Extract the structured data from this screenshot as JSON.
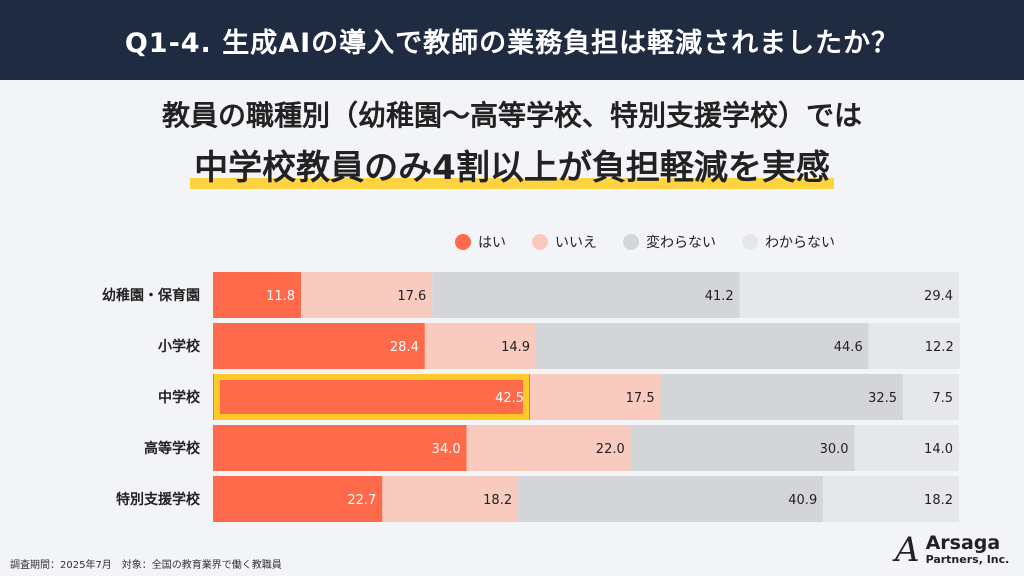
{
  "header": {
    "title": "Q1-4. 生成AIの導入で教師の業務負担は軽減されましたか？"
  },
  "subtitle": {
    "line1": "教員の職種別（幼稚園〜高等学校、特別支援学校）では",
    "line2": "中学校教員のみ4割以上が負担軽減を実感"
  },
  "chart_data": {
    "type": "bar",
    "orientation": "horizontal",
    "stacked": true,
    "xlim": [
      0,
      100
    ],
    "legend_position": "top-right",
    "grid": false,
    "categories": [
      "幼稚園・保育園",
      "小学校",
      "中学校",
      "高等学校",
      "特別支援学校"
    ],
    "highlight": {
      "category": "中学校",
      "series": "はい",
      "color": "#ffc928"
    },
    "series": [
      {
        "name": "はい",
        "color": "#ff6b4a",
        "values": [
          11.8,
          28.4,
          42.5,
          34.0,
          22.7
        ]
      },
      {
        "name": "いいえ",
        "color": "#f8cbbe",
        "values": [
          17.6,
          14.9,
          17.5,
          22.0,
          18.2
        ]
      },
      {
        "name": "変わらない",
        "color": "#d3d5d9",
        "values": [
          41.2,
          44.6,
          32.5,
          30.0,
          40.9
        ]
      },
      {
        "name": "わからない",
        "color": "#e6e7eb",
        "values": [
          29.4,
          12.2,
          7.5,
          14.0,
          18.2
        ]
      }
    ]
  },
  "footer": {
    "note": "調査期間：2025年7月　対象：全国の教育業界で働く教職員"
  },
  "logo": {
    "line1": "Arsaga",
    "line2": "Partners, Inc."
  }
}
